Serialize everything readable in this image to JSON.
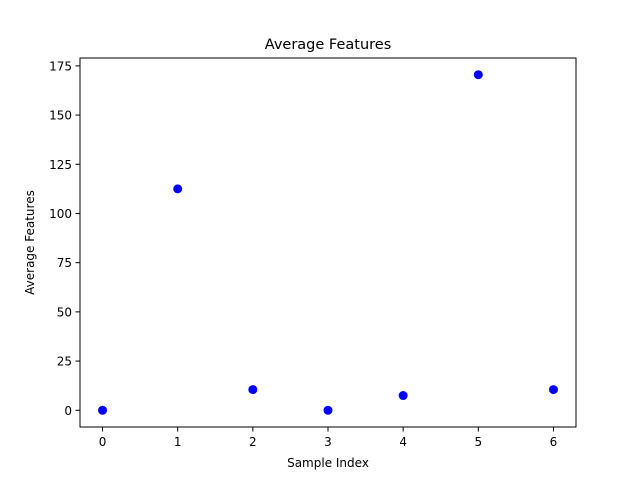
{
  "chart_data": {
    "type": "scatter",
    "title": "Average Features",
    "xlabel": "Sample Index",
    "ylabel": "Average Features",
    "x": [
      0,
      1,
      2,
      3,
      4,
      5,
      6
    ],
    "y": [
      0,
      112.5,
      10.5,
      0,
      7.5,
      170.5,
      10.5
    ],
    "xlim": [
      -0.3,
      6.3
    ],
    "ylim": [
      -8.5,
      179
    ],
    "xticks": [
      0,
      1,
      2,
      3,
      4,
      5,
      6
    ],
    "xtick_labels": [
      "0",
      "1",
      "2",
      "3",
      "4",
      "5",
      "6"
    ],
    "yticks": [
      0,
      25,
      50,
      75,
      100,
      125,
      150,
      175
    ],
    "ytick_labels": [
      "0",
      "25",
      "50",
      "75",
      "100",
      "125",
      "150",
      "175"
    ],
    "marker_color": "#0000ff",
    "grid": false,
    "legend": false
  }
}
